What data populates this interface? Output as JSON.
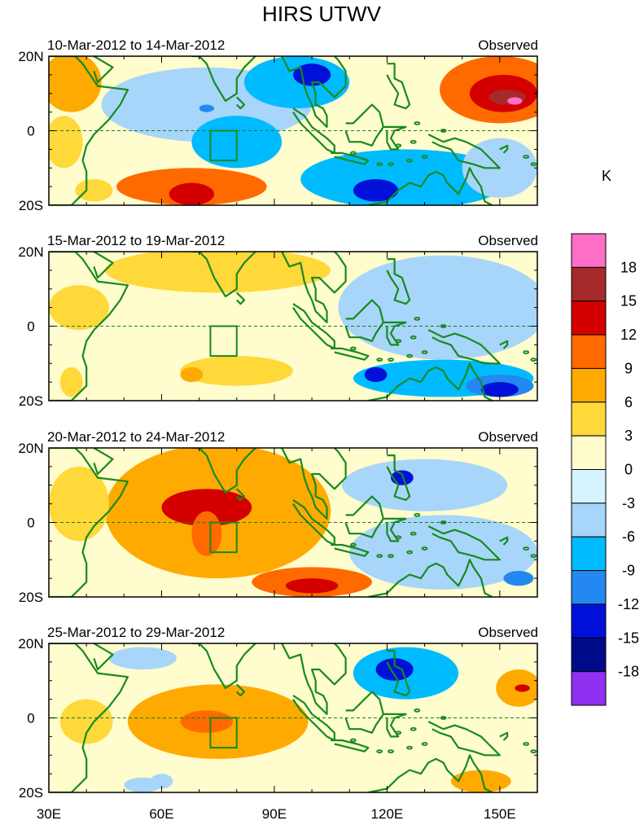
{
  "chart_data": {
    "type": "heatmap",
    "title": "HIRS UTWV",
    "colorbar": {
      "unit_label": "K",
      "levels": [
        "18",
        "15",
        "12",
        "9",
        "6",
        "3",
        "0",
        "-3",
        "-6",
        "-9",
        "-12",
        "-15",
        "-18"
      ],
      "colors": [
        "#ff6ec7",
        "#a52a2a",
        "#d40000",
        "#ff6a00",
        "#ffaa00",
        "#ffd83a",
        "#fffccd",
        "#d6f4ff",
        "#a8d5fa",
        "#00bbff",
        "#2388f0",
        "#0010d8",
        "#000b8c",
        "#9030f0"
      ]
    },
    "x_axis": {
      "ticks": [
        "30E",
        "60E",
        "90E",
        "120E",
        "150E"
      ],
      "tick_values": [
        30,
        60,
        90,
        120,
        150
      ],
      "range": [
        30,
        160
      ]
    },
    "y_axis": {
      "ticks": [
        "20N",
        "0",
        "20S"
      ],
      "tick_values": [
        20,
        0,
        -20
      ],
      "range": [
        -20,
        20
      ]
    },
    "box_region": {
      "lon": [
        73,
        80
      ],
      "lat": [
        -8,
        0
      ]
    },
    "panels": [
      {
        "period": "10-Mar-2012 to 14-Mar-2012",
        "label": "Observed",
        "anomalies": [
          {
            "lon": 36,
            "lat": 13,
            "value": 6,
            "rx": 8,
            "ry": 8
          },
          {
            "lon": 34,
            "lat": -3,
            "value": 4,
            "rx": 5,
            "ry": 7
          },
          {
            "lon": 72,
            "lat": 7,
            "value": -6,
            "rx": 28,
            "ry": 10
          },
          {
            "lon": 72,
            "lat": 6,
            "value": -12,
            "rx": 2,
            "ry": 1
          },
          {
            "lon": 80,
            "lat": -3,
            "value": -7,
            "rx": 12,
            "ry": 7
          },
          {
            "lon": 96,
            "lat": 13,
            "value": -9,
            "rx": 14,
            "ry": 7
          },
          {
            "lon": 100,
            "lat": 15,
            "value": -15,
            "rx": 5,
            "ry": 3
          },
          {
            "lon": 125,
            "lat": -13,
            "value": -7,
            "rx": 28,
            "ry": 8
          },
          {
            "lon": 117,
            "lat": -16,
            "value": -15,
            "rx": 6,
            "ry": 3
          },
          {
            "lon": 68,
            "lat": -15,
            "value": 9,
            "rx": 20,
            "ry": 5
          },
          {
            "lon": 68,
            "lat": -17,
            "value": 12,
            "rx": 6,
            "ry": 3
          },
          {
            "lon": 42,
            "lat": -16,
            "value": 5,
            "rx": 5,
            "ry": 3
          },
          {
            "lon": 150,
            "lat": 11,
            "value": 9,
            "rx": 16,
            "ry": 9
          },
          {
            "lon": 151,
            "lat": 10,
            "value": 13,
            "rx": 9,
            "ry": 5
          },
          {
            "lon": 152,
            "lat": 9,
            "value": 17,
            "rx": 5,
            "ry": 2
          },
          {
            "lon": 154,
            "lat": 8,
            "value": 20,
            "rx": 2,
            "ry": 1
          },
          {
            "lon": 150,
            "lat": -10,
            "value": -4,
            "rx": 10,
            "ry": 8
          }
        ]
      },
      {
        "period": "15-Mar-2012 to 19-Mar-2012",
        "label": "Observed",
        "anomalies": [
          {
            "lon": 75,
            "lat": 15,
            "value": 4,
            "rx": 30,
            "ry": 6
          },
          {
            "lon": 38,
            "lat": 5,
            "value": 5,
            "rx": 8,
            "ry": 6
          },
          {
            "lon": 80,
            "lat": -12,
            "value": 4,
            "rx": 15,
            "ry": 4
          },
          {
            "lon": 68,
            "lat": -13,
            "value": 7,
            "rx": 3,
            "ry": 2
          },
          {
            "lon": 135,
            "lat": 5,
            "value": -5,
            "rx": 28,
            "ry": 14
          },
          {
            "lon": 135,
            "lat": -14,
            "value": -8,
            "rx": 24,
            "ry": 5
          },
          {
            "lon": 117,
            "lat": -13,
            "value": -13,
            "rx": 3,
            "ry": 2
          },
          {
            "lon": 150,
            "lat": -16,
            "value": -12,
            "rx": 9,
            "ry": 3
          },
          {
            "lon": 150,
            "lat": -17,
            "value": -15,
            "rx": 5,
            "ry": 2
          },
          {
            "lon": 36,
            "lat": -15,
            "value": 3,
            "rx": 3,
            "ry": 4
          }
        ]
      },
      {
        "period": "20-Mar-2012 to 24-Mar-2012",
        "label": "Observed",
        "anomalies": [
          {
            "lon": 75,
            "lat": 3,
            "value": 7,
            "rx": 30,
            "ry": 18
          },
          {
            "lon": 72,
            "lat": 4,
            "value": 12,
            "rx": 12,
            "ry": 5
          },
          {
            "lon": 72,
            "lat": -3,
            "value": 11,
            "rx": 4,
            "ry": 6
          },
          {
            "lon": 100,
            "lat": -16,
            "value": 9,
            "rx": 16,
            "ry": 4
          },
          {
            "lon": 100,
            "lat": -17,
            "value": 12,
            "rx": 7,
            "ry": 2
          },
          {
            "lon": 38,
            "lat": 5,
            "value": 3,
            "rx": 8,
            "ry": 10
          },
          {
            "lon": 130,
            "lat": 10,
            "value": -6,
            "rx": 22,
            "ry": 7
          },
          {
            "lon": 124,
            "lat": 12,
            "value": -13,
            "rx": 3,
            "ry": 2
          },
          {
            "lon": 135,
            "lat": -8,
            "value": -5,
            "rx": 25,
            "ry": 10
          },
          {
            "lon": 155,
            "lat": -15,
            "value": -12,
            "rx": 4,
            "ry": 2
          }
        ]
      },
      {
        "period": "25-Mar-2012 to 29-Mar-2012",
        "label": "Observed",
        "anomalies": [
          {
            "lon": 75,
            "lat": -1,
            "value": 7,
            "rx": 24,
            "ry": 10
          },
          {
            "lon": 72,
            "lat": -1,
            "value": 10,
            "rx": 7,
            "ry": 3
          },
          {
            "lon": 40,
            "lat": -1,
            "value": 5,
            "rx": 7,
            "ry": 6
          },
          {
            "lon": 125,
            "lat": 12,
            "value": -7,
            "rx": 14,
            "ry": 7
          },
          {
            "lon": 122,
            "lat": 13,
            "value": -13,
            "rx": 5,
            "ry": 3
          },
          {
            "lon": 55,
            "lat": 16,
            "value": -6,
            "rx": 9,
            "ry": 3
          },
          {
            "lon": 155,
            "lat": 8,
            "value": 7,
            "rx": 6,
            "ry": 5
          },
          {
            "lon": 156,
            "lat": 8,
            "value": 12,
            "rx": 2,
            "ry": 1
          },
          {
            "lon": 145,
            "lat": -17,
            "value": 7,
            "rx": 8,
            "ry": 3
          },
          {
            "lon": 55,
            "lat": -18,
            "value": -6,
            "rx": 5,
            "ry": 2
          },
          {
            "lon": 60,
            "lat": -17,
            "value": -6,
            "rx": 3,
            "ry": 2
          }
        ]
      }
    ]
  }
}
